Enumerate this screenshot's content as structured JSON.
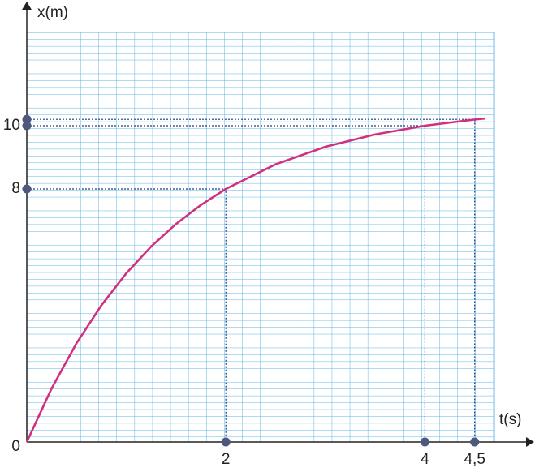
{
  "chart_data": {
    "type": "line",
    "x_label": "t(s)",
    "y_label": "x(m)",
    "x": [
      0,
      0.25,
      0.5,
      0.75,
      1,
      1.25,
      1.5,
      1.75,
      2,
      2.5,
      3,
      3.5,
      4,
      4.5,
      4.6
    ],
    "series": [
      {
        "color": "#d0307f",
        "values": [
          0,
          1.697,
          3.124,
          4.324,
          5.333,
          6.182,
          6.895,
          7.495,
          8,
          8.781,
          9.333,
          9.724,
          10,
          10.196,
          10.227
        ]
      }
    ],
    "markers": {
      "t": [
        2,
        4,
        4.5
      ],
      "x": [
        8,
        10,
        10.2
      ],
      "color": "#4d587c"
    },
    "xlim": [
      0,
      5
    ],
    "ylim": [
      0,
      13
    ],
    "xticks": [
      2,
      4,
      {
        "value": 4.5,
        "label": "4,5"
      }
    ],
    "yticks": [
      0,
      8,
      10
    ],
    "grid": true
  }
}
